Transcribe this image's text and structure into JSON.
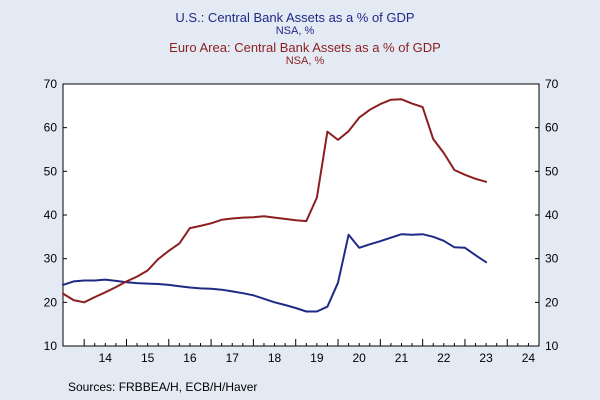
{
  "chart_data": {
    "type": "line",
    "title": "",
    "xlabel": "",
    "ylabel": "",
    "source": "Sources:  FRBBEA/H, ECB/H/Haver",
    "x_tick_labels": [
      "14",
      "15",
      "16",
      "17",
      "18",
      "19",
      "20",
      "21",
      "22",
      "23",
      "24"
    ],
    "x_range": [
      2013.5,
      2024.75
    ],
    "ylim": [
      10,
      70
    ],
    "y_ticks": [
      10,
      20,
      30,
      40,
      50,
      60,
      70
    ],
    "y_tick_labels": [
      "10",
      "20",
      "30",
      "40",
      "50",
      "60",
      "70"
    ],
    "grid": false,
    "legend_placement": "top-center",
    "series": [
      {
        "name": "U.S.: Central Bank Assets as a % of GDP",
        "subtitle": "NSA, %",
        "color": "#1f2a86",
        "x": [
          2013.5,
          2013.75,
          2014.0,
          2014.25,
          2014.5,
          2014.75,
          2015.0,
          2015.25,
          2015.5,
          2015.75,
          2016.0,
          2016.25,
          2016.5,
          2016.75,
          2017.0,
          2017.25,
          2017.5,
          2017.75,
          2018.0,
          2018.25,
          2018.5,
          2018.75,
          2019.0,
          2019.25,
          2019.5,
          2019.75,
          2020.0,
          2020.25,
          2020.5,
          2020.75,
          2021.0,
          2021.25,
          2021.5,
          2021.75,
          2022.0,
          2022.25,
          2022.5,
          2022.75,
          2023.0,
          2023.25,
          2023.5
        ],
        "y": [
          24.0,
          24.8,
          25.0,
          25.0,
          25.2,
          24.9,
          24.6,
          24.4,
          24.3,
          24.2,
          24.0,
          23.7,
          23.4,
          23.2,
          23.1,
          22.9,
          22.5,
          22.1,
          21.6,
          20.8,
          20.0,
          19.4,
          18.7,
          17.9,
          17.9,
          19.0,
          24.5,
          35.5,
          32.5,
          33.3,
          34.0,
          34.8,
          35.6,
          35.5,
          35.6,
          35.0,
          34.1,
          32.6,
          32.5,
          30.8,
          29.2
        ]
      },
      {
        "name": "Euro Area: Central Bank Assets as a % of GDP",
        "subtitle": "NSA, %",
        "color": "#8b1f1f",
        "x": [
          2013.5,
          2013.75,
          2014.0,
          2014.25,
          2014.5,
          2014.75,
          2015.0,
          2015.25,
          2015.5,
          2015.75,
          2016.0,
          2016.25,
          2016.5,
          2016.75,
          2017.0,
          2017.25,
          2017.5,
          2017.75,
          2018.0,
          2018.25,
          2018.5,
          2018.75,
          2019.0,
          2019.25,
          2019.5,
          2019.75,
          2020.0,
          2020.25,
          2020.5,
          2020.75,
          2021.0,
          2021.25,
          2021.5,
          2021.75,
          2022.0,
          2022.25,
          2022.5,
          2022.75,
          2023.0,
          2023.25,
          2023.5
        ],
        "y": [
          22.0,
          20.5,
          20.0,
          21.2,
          22.3,
          23.5,
          24.8,
          25.9,
          27.3,
          29.9,
          31.8,
          33.5,
          37.0,
          37.5,
          38.1,
          38.9,
          39.2,
          39.4,
          39.5,
          39.7,
          39.4,
          39.1,
          38.8,
          38.6,
          44.0,
          59.1,
          57.2,
          59.2,
          62.3,
          64.1,
          65.4,
          66.4,
          66.5,
          65.5,
          64.7,
          57.4,
          54.2,
          50.3,
          49.2,
          48.3,
          47.6
        ]
      }
    ]
  }
}
